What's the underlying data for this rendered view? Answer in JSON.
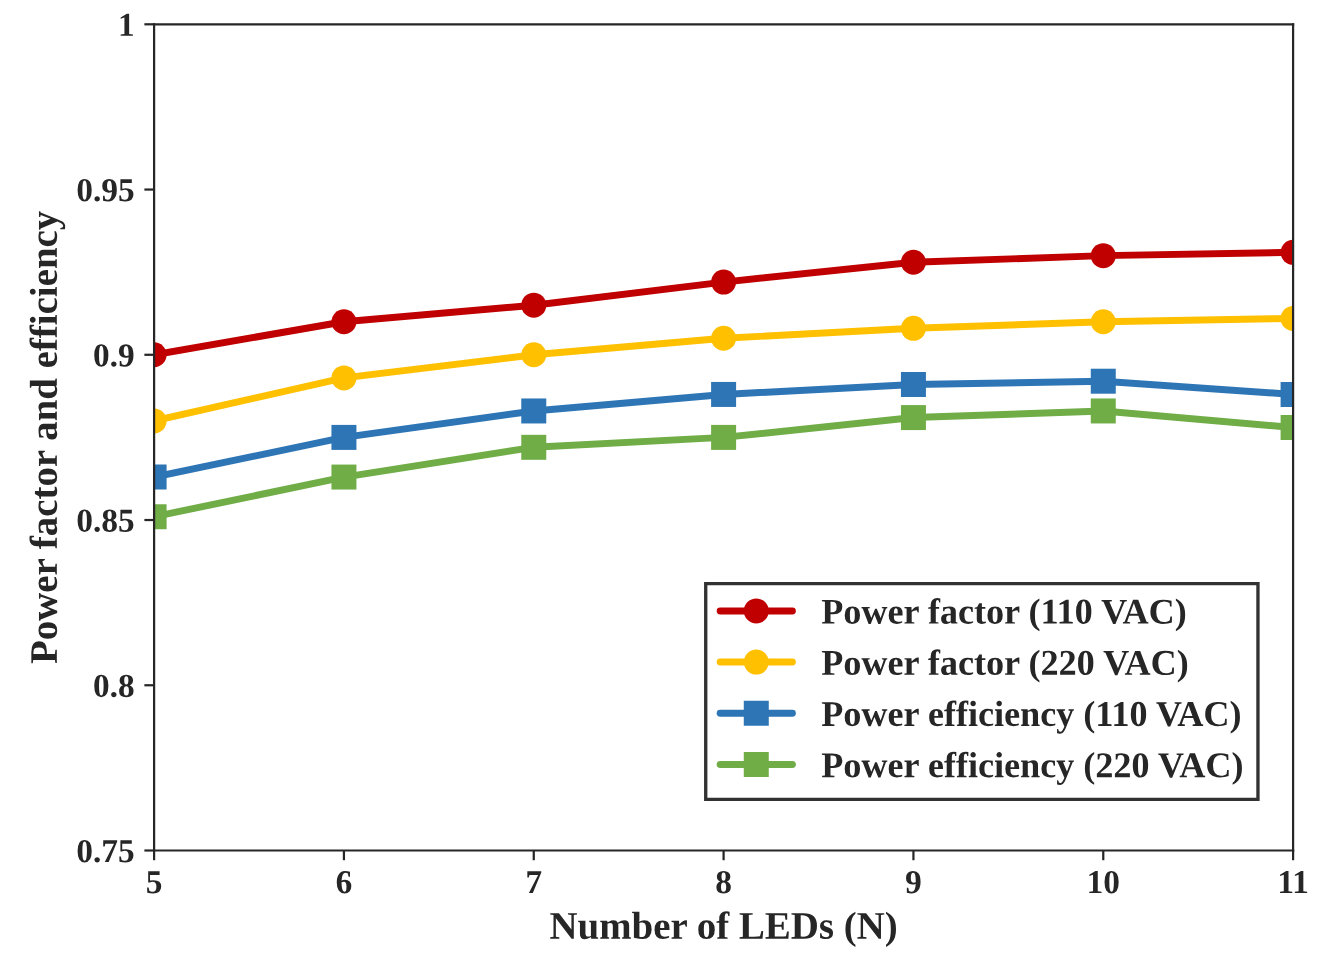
{
  "chart_data": {
    "type": "line",
    "xlabel": "Number of LEDs (N)",
    "ylabel": "Power factor and efficiency",
    "x": [
      5,
      6,
      7,
      8,
      9,
      10,
      11
    ],
    "series": [
      {
        "name": "Power factor (110 VAC)",
        "color": "#c00000",
        "marker": "circle",
        "values": [
          0.9,
          0.91,
          0.915,
          0.922,
          0.928,
          0.93,
          0.931
        ]
      },
      {
        "name": "Power factor (220 VAC)",
        "color": "#ffc000",
        "marker": "circle",
        "values": [
          0.88,
          0.893,
          0.9,
          0.905,
          0.908,
          0.91,
          0.911
        ]
      },
      {
        "name": "Power efficiency (110 VAC)",
        "color": "#2e75b6",
        "marker": "square",
        "values": [
          0.863,
          0.875,
          0.883,
          0.888,
          0.891,
          0.892,
          0.888
        ]
      },
      {
        "name": "Power efficiency (220 VAC)",
        "color": "#70ad47",
        "marker": "square",
        "values": [
          0.851,
          0.863,
          0.872,
          0.875,
          0.881,
          0.883,
          0.878
        ]
      }
    ],
    "xlim": [
      5,
      11
    ],
    "xticks": [
      5,
      6,
      7,
      8,
      9,
      10,
      11
    ],
    "ylim": [
      0.75,
      1
    ],
    "yticks": [
      0.75,
      0.8,
      0.85,
      0.9,
      0.95,
      1
    ],
    "grid": false,
    "legend": "bottom right",
    "line_style": "solid"
  }
}
